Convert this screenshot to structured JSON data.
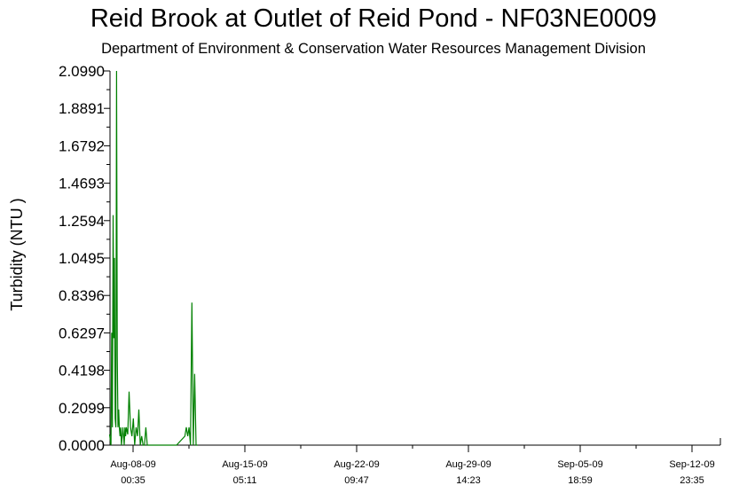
{
  "chart_data": {
    "type": "line",
    "title": "Reid Brook at Outlet of Reid Pond - NF03NE0009",
    "subtitle": "Department of Environment & Conservation Water Resources Management Division",
    "xlabel": "",
    "ylabel": "Turbidity (NTU )",
    "ylim": [
      0,
      2.099
    ],
    "xlim": [
      "2009-08-08 00:35",
      "2009-09-13 12:00"
    ],
    "grid": false,
    "line_color": "#008000",
    "y_ticks": [
      "2.0990",
      "1.8891",
      "1.6792",
      "1.4693",
      "1.2594",
      "1.0495",
      "0.8396",
      "0.6297",
      "0.4198",
      "0.2099",
      "0.0000"
    ],
    "x_ticks": [
      {
        "date": "Aug-08-09",
        "time": "00:35"
      },
      {
        "date": "Aug-15-09",
        "time": "05:11"
      },
      {
        "date": "Aug-22-09",
        "time": "09:47"
      },
      {
        "date": "Aug-29-09",
        "time": "14:23"
      },
      {
        "date": "Sep-05-09",
        "time": "18:59"
      },
      {
        "date": "Sep-12-09",
        "time": "23:35"
      }
    ],
    "series": [
      {
        "x": [
          "2009-08-08 00:00",
          "2009-08-08 02:00",
          "2009-08-08 03:00",
          "2009-08-08 04:00",
          "2009-08-08 05:00",
          "2009-08-08 06:00",
          "2009-08-08 07:00",
          "2009-08-08 08:00",
          "2009-08-08 09:00",
          "2009-08-08 10:00",
          "2009-08-08 11:00",
          "2009-08-08 12:00",
          "2009-08-08 13:00",
          "2009-08-08 14:00",
          "2009-08-08 15:00",
          "2009-08-08 16:00",
          "2009-08-08 17:00",
          "2009-08-08 18:00",
          "2009-08-08 19:00",
          "2009-08-08 20:00",
          "2009-08-08 21:00",
          "2009-08-08 22:00",
          "2009-08-08 23:00",
          "2009-08-09 00:00",
          "2009-08-09 02:00",
          "2009-08-09 04:00",
          "2009-08-09 06:00",
          "2009-08-09 08:00",
          "2009-08-09 10:00",
          "2009-08-09 12:00",
          "2009-08-09 14:00",
          "2009-08-09 16:00",
          "2009-08-09 18:00",
          "2009-08-09 20:00",
          "2009-08-09 22:00",
          "2009-08-10 00:00",
          "2009-08-10 02:00",
          "2009-08-10 04:00",
          "2009-08-10 06:00",
          "2009-08-10 08:00",
          "2009-08-10 10:00",
          "2009-08-10 12:00",
          "2009-08-10 14:00",
          "2009-08-10 16:00",
          "2009-08-10 18:00",
          "2009-08-10 20:00",
          "2009-08-10 22:00",
          "2009-08-11 00:00",
          "2009-08-11 12:00",
          "2009-08-12 00:00",
          "2009-08-12 12:00",
          "2009-08-12 14:00",
          "2009-08-12 16:00",
          "2009-08-12 18:00",
          "2009-08-12 20:00",
          "2009-08-12 22:00",
          "2009-08-13 00:00",
          "2009-08-13 02:00",
          "2009-08-13 04:00",
          "2009-08-13 06:00"
        ],
        "y": [
          0.06,
          0.0,
          0.63,
          0.1,
          1.29,
          0.6,
          1.05,
          0.15,
          0.1,
          2.099,
          0.5,
          0.1,
          0.2,
          0.1,
          0.05,
          0.1,
          0.0,
          0.05,
          0.1,
          0.05,
          0.0,
          0.1,
          0.05,
          0.1,
          0.06,
          0.3,
          0.1,
          0.05,
          0.15,
          0.0,
          0.1,
          0.05,
          0.2,
          0.0,
          0.05,
          0.0,
          0.0,
          0.1,
          0.0,
          0.0,
          0.0,
          0.0,
          0.0,
          0.0,
          0.0,
          0.0,
          0.0,
          0.0,
          0.0,
          0.0,
          0.05,
          0.1,
          0.05,
          0.1,
          0.0,
          0.8,
          0.0,
          0.4,
          0.0,
          0.0
        ]
      }
    ]
  }
}
